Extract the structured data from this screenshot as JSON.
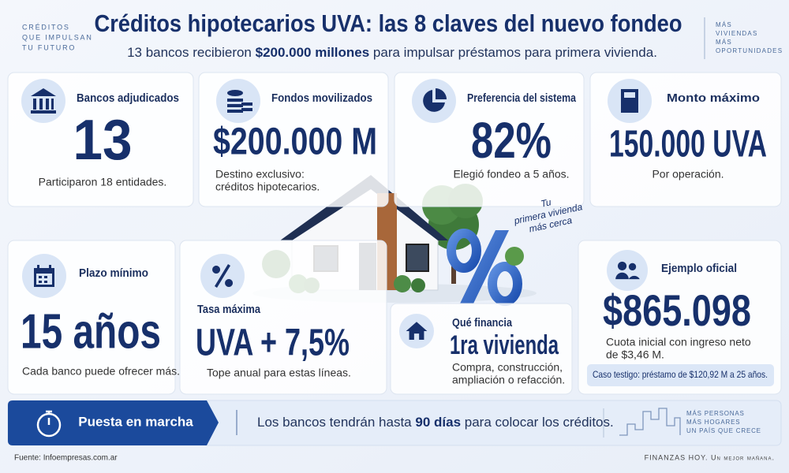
{
  "header": {
    "left_tagline": [
      "CRÉDITOS",
      "QUE IMPULSAN",
      "TU FUTURO"
    ],
    "title": "Créditos hipotecarios UVA: las 8 claves del nuevo fondeo",
    "subtitle": [
      "13 bancos recibieron ",
      "$200.000 millones",
      " para impulsar préstamos para primera vivienda."
    ],
    "right_tagline": [
      "MÁS",
      "VIVIENDAS",
      "MÁS",
      "OPORTUNIDADES"
    ]
  },
  "cards": [
    {
      "label": "Bancos adjudicados",
      "value": "13",
      "note": [
        "Participaron 18 entidades."
      ]
    },
    {
      "label": "Fondos movilizados",
      "value": "$200.000 M",
      "note": [
        "Destino exclusivo:",
        "créditos hipotecarios."
      ]
    },
    {
      "label": "Preferencia del sistema",
      "value": "82%",
      "note": [
        "Elegió fondeo a 5 años."
      ]
    },
    {
      "label": "Monto máximo",
      "value": "150.000 UVA",
      "note": [
        "Por operación."
      ]
    },
    {
      "label": "Plazo mínimo",
      "value": "15 años",
      "note": [
        "Cada banco puede ofrecer más."
      ]
    },
    {
      "label": "Tasa máxima",
      "value": "UVA + 7,5%",
      "note": [
        "Tope anual para estas líneas."
      ]
    },
    {
      "label": "Qué financia",
      "value": "1ra vivienda",
      "note": [
        "Compra, construcción,",
        "ampliación o refacción."
      ]
    },
    {
      "label": "Ejemplo oficial",
      "value": "$865.098",
      "note": [
        "Cuota inicial con ingreso neto",
        "de $3,46 M."
      ],
      "badge": "Caso testigo: préstamo de $120,92 M a 25 años."
    }
  ],
  "illustration": {
    "tagline": [
      "Tu",
      "primera vivienda",
      "más cerca"
    ]
  },
  "banner": {
    "label": "Puesta en marcha",
    "text": [
      "Los bancos tendrán hasta ",
      "90 días",
      " para colocar los créditos."
    ],
    "tagline": [
      "MÁS PERSONAS",
      "MÁS HOGARES",
      "UN PAÍS QUE CRECE"
    ]
  },
  "footer": {
    "source": "Fuente: Infoempresas.com.ar",
    "brand": "FINANZAS HOY. Un mejor mañana."
  }
}
